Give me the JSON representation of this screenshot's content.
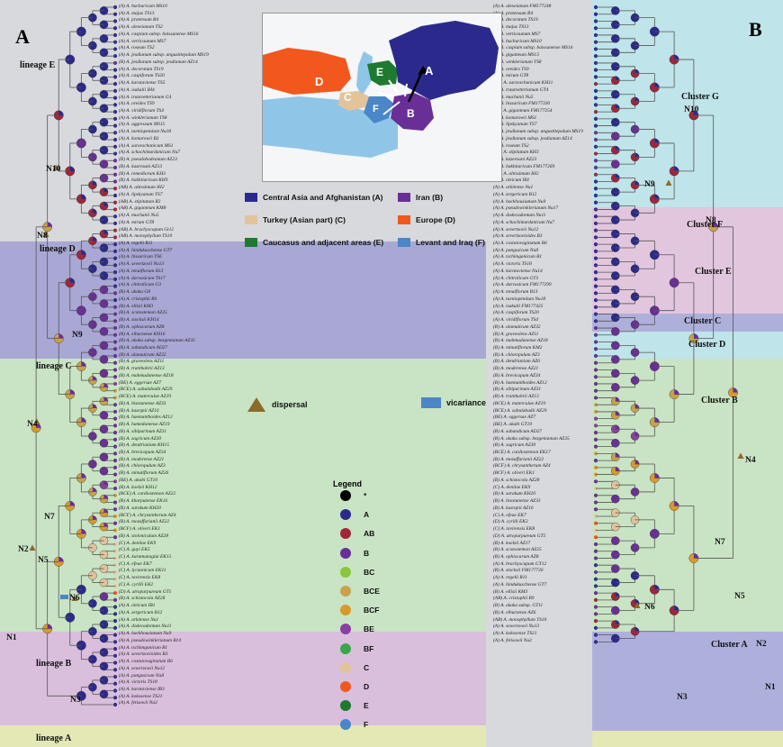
{
  "panels": {
    "left": "A",
    "right": "B"
  },
  "colors": {
    "A": "#2b2a8c",
    "AB": "#a0263a",
    "B": "#6a2f96",
    "BC": "#8cc63f",
    "BCE": "#c8a24a",
    "BCF": "#d99a2b",
    "BE": "#8b3fa3",
    "BF": "#3aa64a",
    "C": "#e2c39a",
    "D": "#f2581e",
    "E": "#1e7a2e",
    "F": "#4a86c8",
    "star": "#000000",
    "dispersal": "#8b6a2a",
    "vicariance": "#4a86c8"
  },
  "lineages": {
    "E": "lineage E",
    "D": "lineage D",
    "C": "lineage C",
    "B": "lineage B",
    "A": "lineage A"
  },
  "nodes_left": [
    "N10",
    "N8",
    "N9",
    "N4",
    "N7",
    "N5",
    "N2",
    "N6",
    "N1",
    "N3"
  ],
  "clusters_right": {
    "G": "Cluster G",
    "F": "Cluster F",
    "E": "Cluster E",
    "C": "Cluster C",
    "D": "Cluster D",
    "B": "Cluster B",
    "A": "Cluster A"
  },
  "nodes_right": [
    "N10",
    "N9",
    "N8",
    "N4",
    "N7",
    "N5",
    "N6",
    "N3",
    "N2",
    "N1"
  ],
  "map_regions": [
    "A",
    "B",
    "C",
    "D",
    "E",
    "F"
  ],
  "areas": [
    {
      "code": "A",
      "label": "Central Asia and Afghanistan (A)"
    },
    {
      "code": "B",
      "label": "Iran (B)"
    },
    {
      "code": "C",
      "label": "Turkey (Asian part) (C)"
    },
    {
      "code": "D",
      "label": "Europe (D)"
    },
    {
      "code": "E",
      "label": "Caucasus and adjacent areas (E)"
    },
    {
      "code": "F",
      "label": "Levant and Iraq (F)"
    }
  ],
  "events": {
    "dispersal": "dispersal",
    "vicariance": "vicariance"
  },
  "legend": {
    "title": "Legend",
    "items": [
      "*",
      "A",
      "AB",
      "B",
      "BC",
      "BCE",
      "BCF",
      "BE",
      "BF",
      "C",
      "D",
      "E",
      "F"
    ]
  },
  "tips_left": [
    "(A) A. bucharicum MS10",
    "(A) A. majus TS13",
    "(A) A. protensum B4",
    "(A) A. alexeianum TS2",
    "(A) A. caspium subsp. baissunense MS16",
    "(A) A. verticaunum MS7",
    "(A) A. roseum TS2",
    "(A) A. jesdianum subsp. angustitepalum MS19",
    "(B) A. jesdianum subsp. jesdianum AZ14",
    "(A) A. decoratum TS19",
    "(A) A. caspiforum TS20",
    "(A) A. karataviense TS5",
    "(A) A. isakulii IH4",
    "(A) A. trautvetterianum G4",
    "(A) A. oreides TS9",
    "(A) A. viridiflorum TS4",
    "(A) A. winklerianum TS8",
    "(A) A. aggressum MS15",
    "(A) A. taeniopetalum Nu18",
    "(A) A. komarowii B3",
    "(A) A. saravschanicum MS1",
    "(A) A. schachimardanicum Nu7",
    "(B) A. pseudobodeanum AZ23",
    "(B) A. kazerouni AZ13",
    "(B) A. remediorum KH3",
    "(B) A. bakhtiaricum KH9",
    "(AB) A. altissimum IH2",
    "(A) A. lipskyanum TS7",
    "(AB) A. stipitatum R2",
    "(AB) A. giganteum KM8",
    "(A) A. muchanii Nu5",
    "(A) A. mirum GT8",
    "(AB) A. brachyscapum Gt12",
    "(AB) A. monophyllum TS10",
    "(A) A. regelii R11",
    "(A) A. hindukuschense GT7",
    "(A) A. hissaricum TS6",
    "(A) A. severtzovii Nu13",
    "(A) A. tenuiflorum B13",
    "(A) A. darvasicum TS17",
    "(A) A. chitralicum G3",
    "(B) A. akaka G8",
    "(A) A. cristophii B9",
    "(B) A. ellisii KM3",
    "(B) A. scotostemon AZ25",
    "(B) A. stocksii KH14",
    "(B) A. ophiocarum AZ8",
    "(B) A. elburzense KH16",
    "(B) A. akaka subsp. bezgenianum AZ35",
    "(B) A. sabandicum AD27",
    "(B) A. alamuticum AZ32",
    "(B) A. graveolens AZ11",
    "(B) A. tranthahrii AZ13",
    "(B) A. mahmudanense AZ18",
    "(BE) A. eggersae AZ7",
    "(BCE) A. sabulabadii AZ29",
    "(BCE) A. materculae AZ19",
    "(B) A. bisotunense AZ33",
    "(B) A. kasrqnii AZ16",
    "(B) A. haemanthoides AZ12",
    "(B) A. hamedanense AZ19",
    "(B) A. sibiparinum AZ31",
    "(B) A. zagricum AZ30",
    "(B) A. dendrianiam KH15",
    "(B) A. brevicapum AZ34",
    "(B) A. moderense AZ21",
    "(B) A. chloropulum AZ3",
    "(B) A. minutiflorum AZ26",
    "(BE) A. akabi GT10",
    "(B) A. koelzii KH12",
    "(BCE) A. cardiostemon AZ22",
    "(B) A. kharputense EK16",
    "(B) A. sarakum KH20",
    "(BCF) A. chrysantherum AZ4",
    "(B) A. mozaffarianii AZ22",
    "(BCF) A. oliveri EK1",
    "(B) A. stoloniculum AZ28",
    "(C) A. denilae EK9",
    "(C) A. guyi EK5",
    "(C) A. karamanoglui EK15",
    "(C) A. efeae EK7",
    "(C) A. lycaonicum EK11",
    "(C) A. tavirensis EK8",
    "(C) A. cyrilli EK2",
    "(D) A. atropurpureum GT5",
    "(B) A. schistocola AZ28",
    "(A) A. oleicum IB1",
    "(A) A. zergericum B12",
    "(A) A. arkitense Nu1",
    "(A) A. dodecadontum Nu11",
    "(A) A. backhousianum Nu9",
    "(A) A. pseudowinklerianum B14",
    "(A) A. tschimganicum B1",
    "(A) A. severtzovioides B3",
    "(A) A. costatovaginatum B6",
    "(A) A. sewerzowii Nu12",
    "(A) A. pangssicum Nu8",
    "(A) A. victoris TS18",
    "(A) A. karataviense IB3",
    "(A) A. kokosense TS21",
    "(A) A. fetisowii Nu3"
  ],
  "tips_right": [
    "(A) A. alexeianum FM177248",
    "(A) A. protensum B4",
    "(A) A. decoratum TS19",
    "(A) A. majus TS13",
    "(A) A. verticaunum MS7",
    "(A) A. bucharicum MS10",
    "(A) A. caspium subsp. baissunense MS16",
    "(A) A. giganteum MS13",
    "(A) A. winklerianum TS8",
    "(A) A. oreides TS9",
    "(A) A. mirum GT8",
    "(AB) A. saravschanicum KH11",
    "(A) A. trautvetterianum GT4",
    "(A) A. muchanii Nu5",
    "(A) A. hissaricum FM177330",
    "(AB) A. giganteum FM177254",
    "(A) A. komarowii MS1",
    "(A) A. lipskyanum TS7",
    "(B) A. jesdianum subsp. angustitepalum MS19",
    "(B) A. jesdianum subsp. jesdianum AZ14",
    "(A) A. roseum TS2",
    "(AB) A. stipitatum KH3",
    "(B) A. kazerouni AZ23",
    "(B) A. bakhtiaricum FM177269",
    "(AB) A. altissimum IH2",
    "(A) A. oleicum IB1",
    "(A) A. arkitense Nu1",
    "(A) A. zergericum B12",
    "(A) A. backhousianum Nu9",
    "(A) A. pseudowinklerianum Nu17",
    "(A) A. dodecadontum Nu11",
    "(A) A. schachimardanicum Nu7",
    "(A) A. severtzovii Nu12",
    "(A) A. severtzovioides B3",
    "(A) A. costatovaginatum B6",
    "(A) A. pangssicum Nu8",
    "(A) A. tschimganicum B1",
    "(A) A. victoris TS18",
    "(A) A. karataviense Nu14",
    "(A) A. chitralicum GT3",
    "(A) A. darvasicum FM177299",
    "(A) A. tenuiflorum B13",
    "(A) A. taeniopetalum Nu18",
    "(A) A. isakulii FM177425",
    "(A) A. caspiforum TS20",
    "(A) A. viridiflorum TS4",
    "(B) A. alamuticum AZ32",
    "(B) A. graveolens AZ11",
    "(B) A. mahmudanense AZ18",
    "(B) A. minutiflorum KM2",
    "(B) A. chloropulum AZ3",
    "(B) A. dendrianiam AZ6",
    "(B) A. moderense AZ21",
    "(B) A. brevicapum AZ34",
    "(B) A. haemanthoides AZ12",
    "(B) A. sibiparinum AZ31",
    "(B) A. tranthahrii AZ13",
    "(BCE) A. materculae AZ19",
    "(BCE) A. sabulabadii AZ29",
    "(BE) A. eggersae AZ7",
    "(BE) A. akabi GT10",
    "(B) A. sabandicum AD27",
    "(B) A. akaka subsp. bezgenianum AZ35",
    "(B) A. zagricum AZ30",
    "(BCE) A. cardiostemon EK17",
    "(B) A. mozaffarianii AZ22",
    "(BCF) A. chrysantherum AZ4",
    "(BCF) A. oliveri EK1",
    "(B) A. schistocola AZ28",
    "(C) A. denilae EK9",
    "(B) A. sarakum KH20",
    "(B) A. bisotunense AZ33",
    "(B) A. kasrqnii AZ16",
    "(C) A. efeae EK7",
    "(D) A. cyrilli EK2",
    "(C) A. tavirensis EK8",
    "(D) A. atropurpureum GT5",
    "(B) A. koelzii AZ17",
    "(B) A. scotostemon AZ25",
    "(B) A. ophiocarum AZ8",
    "(A) A. brachyscapum GT12",
    "(B) A. stocksii FM177726",
    "(A) A. regelii R11",
    "(A) A. hindukuschense GT7",
    "(B) A. ellisii KM3",
    "(AB) A. cristophii B9",
    "(B) A. akaka subsp. GT11",
    "(B) A. elburzense AZ6",
    "(AB) A. monophyllum TS10",
    "(A) A. sewerzowii Nu13",
    "(A) A. kokosense TS21",
    "(A) A. fetisowii Nu3"
  ]
}
